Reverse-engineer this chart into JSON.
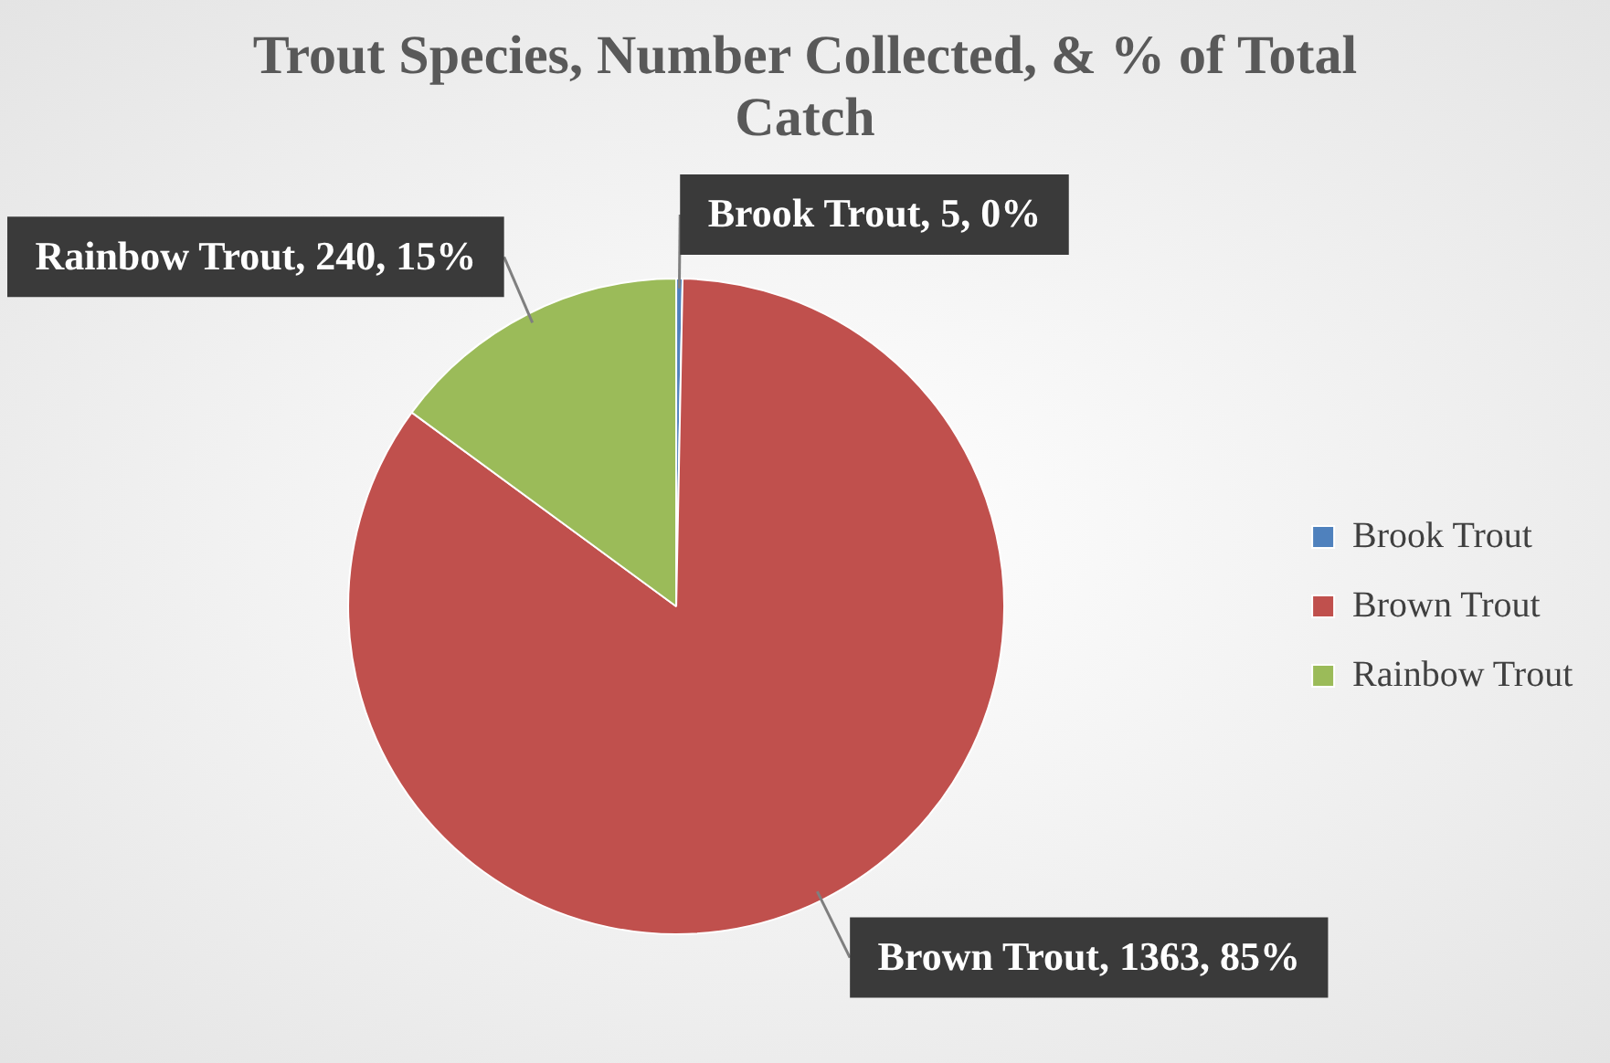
{
  "chart_data": {
    "type": "pie",
    "title": "Trout Species, Number Collected, & % of Total Catch",
    "categories": [
      "Brook Trout",
      "Brown Trout",
      "Rainbow Trout"
    ],
    "values": [
      5,
      1363,
      240
    ],
    "colors": [
      "#4f81bd",
      "#c0504d",
      "#9bbb59"
    ],
    "value_labels": [
      "Brook Trout, 5, 0%",
      "Brown Trout, 1363, 85%",
      "Rainbow Trout, 240, 15%"
    ],
    "legend": "right"
  }
}
